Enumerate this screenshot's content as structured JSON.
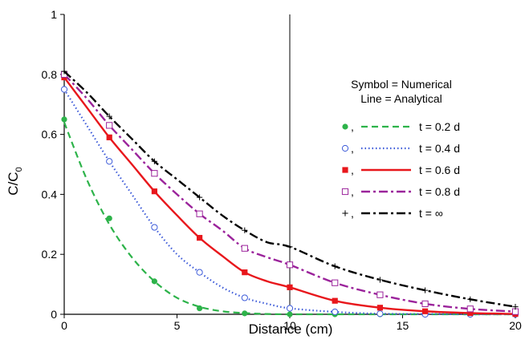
{
  "chart_data": {
    "type": "line",
    "title": "",
    "xlabel": "Distance (cm)",
    "ylabel_main": "C/C",
    "ylabel_sub": "0",
    "xlim": [
      0,
      20
    ],
    "ylim": [
      0,
      1
    ],
    "x_ticks": [
      0,
      5,
      10,
      15,
      20
    ],
    "y_ticks": [
      0,
      0.2,
      0.4,
      0.6,
      0.8,
      1
    ],
    "x_tick_labels": [
      "0",
      "5",
      "10",
      "15",
      "20"
    ],
    "y_tick_labels": [
      "0",
      "0.2",
      "0.4",
      "0.6",
      "0.8",
      "1"
    ],
    "vertical_reference_line_x": 10,
    "grid": false,
    "legend": {
      "placement": "right",
      "header_line1": "Symbol = Numerical",
      "header_line2": "Line = Analytical",
      "separator": ","
    },
    "series": [
      {
        "name": "t = 0.2 d",
        "color": "#2db34a",
        "dash": "dashed",
        "marker": "filled-circle",
        "line_x": [
          0,
          1,
          2,
          3,
          4,
          5,
          6,
          7,
          8,
          9,
          10,
          12,
          14,
          16,
          18,
          20
        ],
        "line_y": [
          0.64,
          0.45,
          0.3,
          0.19,
          0.11,
          0.055,
          0.025,
          0.01,
          0.004,
          0.001,
          0,
          0,
          0,
          0,
          0,
          0
        ],
        "points_x": [
          0,
          2,
          4,
          6,
          8,
          10,
          12,
          14,
          16,
          18,
          20
        ],
        "points_y": [
          0.65,
          0.32,
          0.11,
          0.02,
          0.003,
          0,
          0,
          0,
          0,
          0,
          0
        ]
      },
      {
        "name": "t = 0.4 d",
        "color": "#3d5bd9",
        "dash": "dotted",
        "marker": "open-circle",
        "line_x": [
          0,
          1,
          2,
          3,
          4,
          5,
          6,
          7,
          8,
          9,
          10,
          12,
          14,
          16,
          18,
          20
        ],
        "line_y": [
          0.75,
          0.63,
          0.51,
          0.4,
          0.29,
          0.2,
          0.14,
          0.09,
          0.055,
          0.035,
          0.02,
          0.008,
          0.002,
          0.001,
          0,
          0
        ],
        "points_x": [
          0,
          2,
          4,
          6,
          8,
          10,
          12,
          14,
          16,
          18,
          20
        ],
        "points_y": [
          0.75,
          0.51,
          0.29,
          0.14,
          0.055,
          0.02,
          0.008,
          0.002,
          0,
          0,
          0
        ]
      },
      {
        "name": "t = 0.6 d",
        "color": "#e8171c",
        "dash": "solid",
        "marker": "filled-square",
        "line_x": [
          0,
          1,
          2,
          3,
          4,
          5,
          6,
          7,
          8,
          9,
          10,
          12,
          14,
          16,
          18,
          20
        ],
        "line_y": [
          0.79,
          0.69,
          0.59,
          0.5,
          0.41,
          0.33,
          0.255,
          0.195,
          0.14,
          0.11,
          0.09,
          0.045,
          0.022,
          0.01,
          0.004,
          0.001
        ],
        "points_x": [
          0,
          2,
          4,
          6,
          8,
          10,
          12,
          14,
          16,
          18,
          20
        ],
        "points_y": [
          0.79,
          0.59,
          0.41,
          0.255,
          0.14,
          0.09,
          0.045,
          0.022,
          0.01,
          0.004,
          0.001
        ]
      },
      {
        "name": "t = 0.8 d",
        "color": "#9b239b",
        "dash": "dashdot",
        "marker": "open-square",
        "line_x": [
          0,
          1,
          2,
          3,
          4,
          5,
          6,
          7,
          8,
          9,
          10,
          12,
          14,
          16,
          18,
          20
        ],
        "line_y": [
          0.8,
          0.72,
          0.63,
          0.55,
          0.47,
          0.4,
          0.335,
          0.28,
          0.22,
          0.19,
          0.165,
          0.105,
          0.065,
          0.035,
          0.018,
          0.009
        ],
        "points_x": [
          0,
          2,
          4,
          6,
          8,
          10,
          12,
          14,
          16,
          18,
          20
        ],
        "points_y": [
          0.8,
          0.63,
          0.47,
          0.335,
          0.22,
          0.165,
          0.105,
          0.065,
          0.035,
          0.018,
          0.009
        ]
      },
      {
        "name": "t = ∞",
        "color": "#000000",
        "dash": "dashdot",
        "marker": "plus",
        "line_x": [
          0,
          1,
          2,
          3,
          4,
          5,
          6,
          7,
          8,
          9,
          10,
          12,
          14,
          16,
          18,
          20
        ],
        "line_y": [
          0.81,
          0.74,
          0.66,
          0.585,
          0.51,
          0.45,
          0.39,
          0.33,
          0.28,
          0.24,
          0.225,
          0.16,
          0.115,
          0.08,
          0.05,
          0.025
        ],
        "points_x": [
          0,
          2,
          4,
          6,
          8,
          10,
          12,
          14,
          16,
          18,
          20
        ],
        "points_y": [
          0.81,
          0.66,
          0.51,
          0.39,
          0.28,
          0.225,
          0.16,
          0.115,
          0.08,
          0.05,
          0.025
        ]
      }
    ]
  }
}
